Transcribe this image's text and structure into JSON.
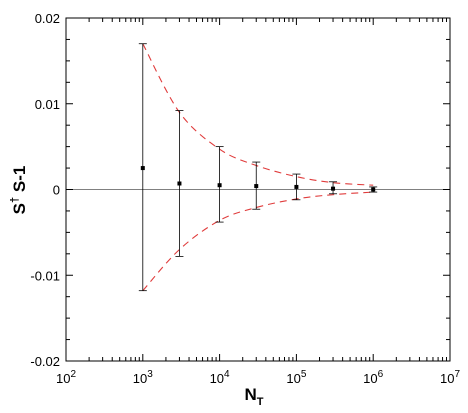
{
  "chart_data": {
    "type": "scatter",
    "title": "",
    "xlabel": {
      "main": "N",
      "sub": "T"
    },
    "ylabel": {
      "s": "S",
      "dagger": "†",
      "rest": " S-1"
    },
    "x_scale": "log",
    "xlim": [
      100,
      10000000
    ],
    "ylim": [
      -0.02,
      0.02
    ],
    "x_ticks": [
      {
        "value": 100,
        "base": "10",
        "exp": "2"
      },
      {
        "value": 1000,
        "base": "10",
        "exp": "3"
      },
      {
        "value": 10000,
        "base": "10",
        "exp": "4"
      },
      {
        "value": 100000,
        "base": "10",
        "exp": "5"
      },
      {
        "value": 1000000,
        "base": "10",
        "exp": "6"
      },
      {
        "value": 10000000,
        "base": "10",
        "exp": "7"
      }
    ],
    "y_ticks": [
      {
        "value": 0.02,
        "label": "0.02"
      },
      {
        "value": 0.01,
        "label": "0.01"
      },
      {
        "value": 0,
        "label": "0"
      },
      {
        "value": -0.01,
        "label": "-0.01"
      },
      {
        "value": -0.02,
        "label": "-0.02"
      }
    ],
    "grid": false,
    "zero_line": true,
    "points": [
      {
        "x": 1000,
        "y": 0.0025,
        "err_low": -0.0118,
        "err_high": 0.017
      },
      {
        "x": 3000,
        "y": 0.0007,
        "err_low": -0.0078,
        "err_high": 0.0092
      },
      {
        "x": 10000,
        "y": 0.0005,
        "err_low": -0.0038,
        "err_high": 0.005
      },
      {
        "x": 30000,
        "y": 0.0004,
        "err_low": -0.0023,
        "err_high": 0.0032
      },
      {
        "x": 100000,
        "y": 0.0003,
        "err_low": -0.0012,
        "err_high": 0.0018
      },
      {
        "x": 300000,
        "y": 0.0001,
        "err_low": -0.0005,
        "err_high": 0.0009
      },
      {
        "x": 1000000,
        "y": 0.0,
        "err_low": -0.0003,
        "err_high": 0.0003
      }
    ],
    "envelope": {
      "style": "dashed",
      "upper": [
        [
          1000,
          0.017
        ],
        [
          3000,
          0.009
        ],
        [
          10000,
          0.0047
        ],
        [
          30000,
          0.0028
        ],
        [
          100000,
          0.0015
        ],
        [
          300000,
          0.0008
        ],
        [
          1000000,
          0.0005
        ]
      ],
      "lower": [
        [
          1000,
          -0.0118
        ],
        [
          3000,
          -0.007
        ],
        [
          10000,
          -0.0036
        ],
        [
          30000,
          -0.0021
        ],
        [
          100000,
          -0.0011
        ],
        [
          300000,
          -0.0006
        ],
        [
          1000000,
          -0.0003
        ]
      ]
    },
    "colors": {
      "points": "#000000",
      "errorbars": "#000000",
      "envelope": "#e03c3c",
      "axes": "#000000",
      "zero_line": "#808080"
    }
  }
}
